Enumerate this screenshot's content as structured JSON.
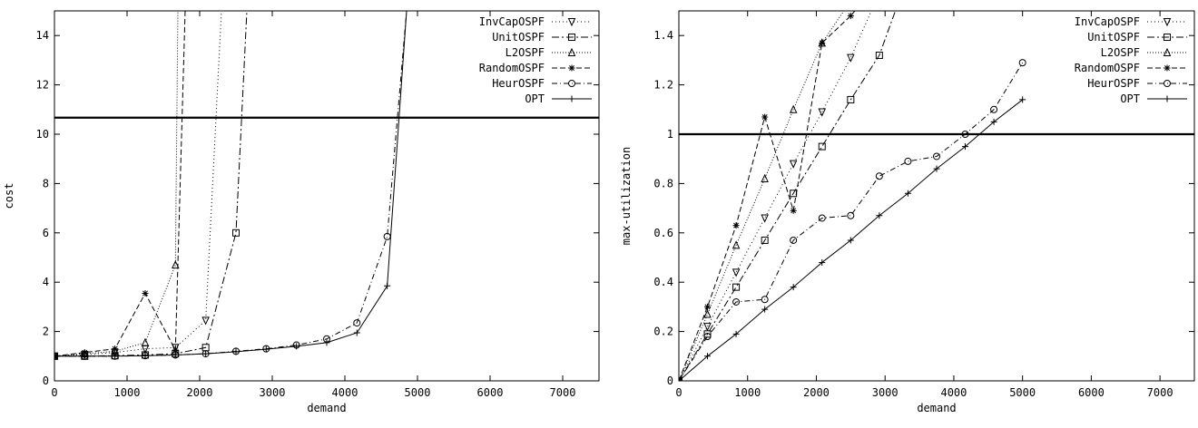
{
  "chart_data": [
    {
      "type": "line",
      "xlabel": "demand",
      "ylabel": "cost",
      "xlim": [
        0,
        7500
      ],
      "ylim": [
        0,
        15
      ],
      "xticks": [
        0,
        1000,
        2000,
        3000,
        4000,
        5000,
        6000,
        7000
      ],
      "yticks": [
        0,
        2,
        4,
        6,
        8,
        10,
        12,
        14
      ],
      "hline": 10.67,
      "legend_position": "top-right",
      "series": [
        {
          "name": "InvCapOSPF",
          "marker": "tri-down",
          "dash": "1,3",
          "x": [
            0,
            416,
            833,
            1250,
            1666,
            2083,
            2300
          ],
          "y": [
            1.0,
            1.06,
            1.15,
            1.3,
            1.35,
            2.45,
            15.0
          ]
        },
        {
          "name": "UnitOSPF",
          "marker": "square",
          "dash": "8,3,2,3",
          "x": [
            0,
            416,
            833,
            1250,
            1666,
            2083,
            2500,
            2650
          ],
          "y": [
            1.0,
            1.0,
            1.02,
            1.05,
            1.1,
            1.35,
            6.0,
            15.0
          ]
        },
        {
          "name": "L2OSPF",
          "marker": "tri-up",
          "dash": "1,2",
          "x": [
            0,
            416,
            833,
            1250,
            1666,
            1700
          ],
          "y": [
            1.0,
            1.1,
            1.2,
            1.55,
            4.7,
            15.0
          ]
        },
        {
          "name": "RandomOSPF",
          "marker": "star",
          "dash": "6,3",
          "x": [
            0,
            416,
            833,
            1250,
            1666,
            1800
          ],
          "y": [
            1.0,
            1.15,
            1.3,
            3.55,
            1.25,
            15.0
          ]
        },
        {
          "name": "HeurOSPF",
          "marker": "circle",
          "dash": "6,3,1,3",
          "x": [
            0,
            416,
            833,
            1250,
            1666,
            2083,
            2500,
            2916,
            3333,
            3750,
            4166,
            4583,
            4850
          ],
          "y": [
            1.0,
            1.0,
            1.0,
            1.02,
            1.05,
            1.1,
            1.2,
            1.3,
            1.45,
            1.7,
            2.35,
            5.85,
            15.0
          ]
        },
        {
          "name": "OPT",
          "marker": "plus",
          "dash": "",
          "x": [
            0,
            416,
            833,
            1250,
            1666,
            2083,
            2500,
            2916,
            3333,
            3750,
            4166,
            4583,
            4850
          ],
          "y": [
            1.0,
            1.0,
            1.0,
            1.02,
            1.05,
            1.1,
            1.18,
            1.28,
            1.4,
            1.55,
            1.95,
            3.85,
            15.0
          ]
        }
      ]
    },
    {
      "type": "line",
      "xlabel": "demand",
      "ylabel": "max-utilization",
      "xlim": [
        0,
        7500
      ],
      "ylim": [
        0,
        1.5
      ],
      "xticks": [
        0,
        1000,
        2000,
        3000,
        4000,
        5000,
        6000,
        7000
      ],
      "yticks": [
        0,
        0.2,
        0.4,
        0.6,
        0.8,
        1,
        1.2,
        1.4
      ],
      "hline": 1.0,
      "legend_position": "top-right",
      "series": [
        {
          "name": "InvCapOSPF",
          "marker": "tri-down",
          "dash": "1,3",
          "x": [
            0,
            416,
            833,
            1250,
            1666,
            2083,
            2500,
            2800
          ],
          "y": [
            0,
            0.22,
            0.44,
            0.66,
            0.88,
            1.09,
            1.31,
            1.5
          ]
        },
        {
          "name": "UnitOSPF",
          "marker": "square",
          "dash": "8,3,2,3",
          "x": [
            0,
            416,
            833,
            1250,
            1666,
            2083,
            2500,
            2916,
            3150
          ],
          "y": [
            0,
            0.19,
            0.38,
            0.57,
            0.76,
            0.95,
            1.14,
            1.32,
            1.5
          ]
        },
        {
          "name": "L2OSPF",
          "marker": "tri-up",
          "dash": "1,2",
          "x": [
            0,
            416,
            833,
            1250,
            1666,
            2083,
            2400
          ],
          "y": [
            0,
            0.27,
            0.55,
            0.82,
            1.1,
            1.37,
            1.5
          ]
        },
        {
          "name": "RandomOSPF",
          "marker": "star",
          "dash": "6,3",
          "x": [
            0,
            416,
            833,
            1250,
            1666,
            2083,
            2500,
            2560
          ],
          "y": [
            0,
            0.3,
            0.63,
            1.07,
            0.69,
            1.37,
            1.48,
            1.5
          ]
        },
        {
          "name": "HeurOSPF",
          "marker": "circle",
          "dash": "6,3,1,3",
          "x": [
            0,
            416,
            833,
            1250,
            1666,
            2083,
            2500,
            2916,
            3333,
            3750,
            4166,
            4583,
            5000
          ],
          "y": [
            0,
            0.18,
            0.32,
            0.33,
            0.57,
            0.66,
            0.67,
            0.83,
            0.89,
            0.91,
            1.0,
            1.1,
            1.29
          ]
        },
        {
          "name": "OPT",
          "marker": "plus",
          "dash": "",
          "x": [
            0,
            416,
            833,
            1250,
            1666,
            2083,
            2500,
            2916,
            3333,
            3750,
            4166,
            4583,
            5000
          ],
          "y": [
            0,
            0.1,
            0.19,
            0.29,
            0.38,
            0.48,
            0.57,
            0.67,
            0.76,
            0.86,
            0.95,
            1.05,
            1.14
          ]
        }
      ]
    }
  ]
}
